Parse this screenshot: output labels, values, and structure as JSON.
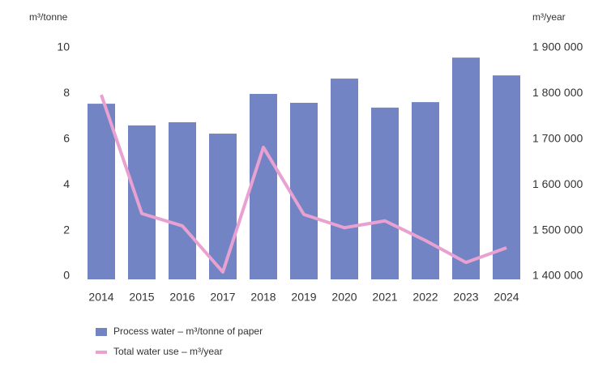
{
  "chart_data": {
    "type": "bar",
    "ylabel": "m³/tonne",
    "y2label": "m³/year",
    "categories": [
      "2014",
      "2015",
      "2016",
      "2017",
      "2018",
      "2019",
      "2020",
      "2021",
      "2022",
      "2023",
      "2024"
    ],
    "series": [
      {
        "name": "Process water – m³/tonne of paper",
        "type": "bar",
        "color": "#7384c4",
        "values": [
          7.55,
          6.6,
          6.74,
          6.24,
          7.98,
          7.59,
          8.65,
          7.38,
          7.62,
          9.57,
          8.79
        ]
      },
      {
        "name": "Total water use – m³/year",
        "type": "line",
        "axis": "y2",
        "color": "#e8a1d0",
        "values": [
          1797000,
          1537000,
          1510000,
          1409000,
          1682000,
          1535000,
          1506000,
          1521000,
          1478000,
          1430000,
          1462000
        ]
      }
    ],
    "ylim": [
      0,
      10
    ],
    "yticks": [
      0,
      2,
      4,
      6,
      8,
      10
    ],
    "y2lim": [
      1400000,
      1900000
    ],
    "y2ticks": [
      {
        "value": 1400000,
        "label": "1 400 000"
      },
      {
        "value": 1500000,
        "label": "1 500 000"
      },
      {
        "value": 1600000,
        "label": "1 600 000"
      },
      {
        "value": 1700000,
        "label": "1 700 000"
      },
      {
        "value": 1800000,
        "label": "1 800 000"
      },
      {
        "value": 1900000,
        "label": "1 900 000"
      }
    ],
    "grid": false
  }
}
